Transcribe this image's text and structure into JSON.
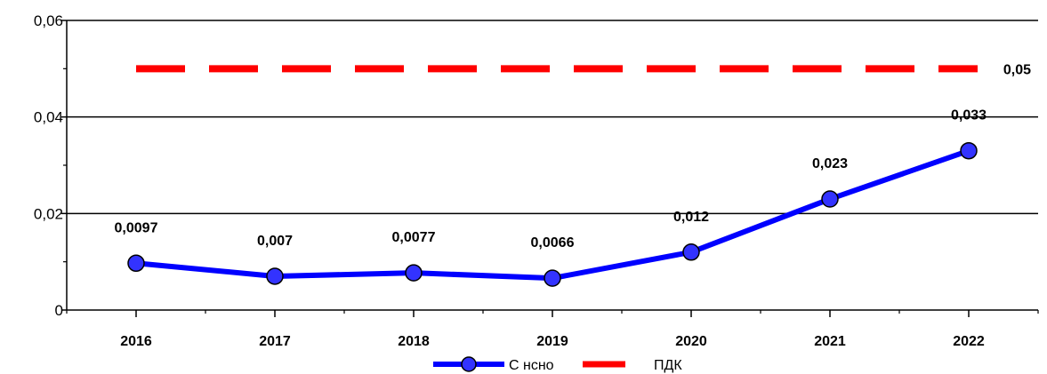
{
  "chart_data": {
    "type": "line",
    "categories": [
      "2016",
      "2017",
      "2018",
      "2019",
      "2020",
      "2021",
      "2022"
    ],
    "ylim": [
      0,
      0.06
    ],
    "yticks": [
      {
        "value": 0,
        "label": "0"
      },
      {
        "value": 0.02,
        "label": "0,02"
      },
      {
        "value": 0.04,
        "label": "0,04"
      },
      {
        "value": 0.06,
        "label": "0,06"
      }
    ],
    "y_minor_step": 0.01,
    "grid": true,
    "legend_position": "bottom",
    "series": [
      {
        "name": "С нсно",
        "color": "#0000ff",
        "marker_fill": "#3333ff",
        "values": [
          0.0097,
          0.007,
          0.0077,
          0.0066,
          0.012,
          0.023,
          0.033
        ],
        "labels": [
          "0,0097",
          "0,007",
          "0,0077",
          "0,0066",
          "0,012",
          "0,023",
          "0,033"
        ]
      },
      {
        "name": "ПДК",
        "color": "#ff0000",
        "style": "dashed",
        "values": [
          0.05,
          0.05,
          0.05,
          0.05,
          0.05,
          0.05,
          0.05
        ],
        "end_label": "0,05"
      }
    ]
  }
}
